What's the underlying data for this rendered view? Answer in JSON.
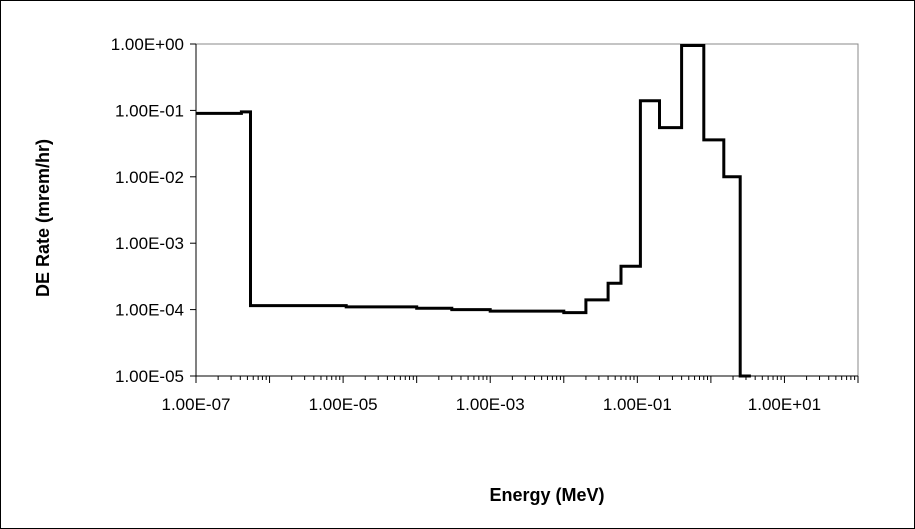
{
  "chart_data": {
    "type": "line",
    "step": true,
    "title": "",
    "xlabel": "Energy (MeV)",
    "ylabel": "DE Rate (mrem/hr)",
    "x_scale": "log",
    "y_scale": "log",
    "xlim": [
      1e-07,
      100
    ],
    "ylim": [
      1e-05,
      1
    ],
    "x_tick_labels": [
      "1.00E-07",
      "1.00E-05",
      "1.00E-03",
      "1.00E-01",
      "1.00E+01"
    ],
    "y_tick_labels": [
      "1.00E+00",
      "1.00E-01",
      "1.00E-02",
      "1.00E-03",
      "1.00E-04",
      "1.00E-05"
    ],
    "grid": false,
    "legend": "none",
    "bin_edges": [
      1e-07,
      4.14e-07,
      5.5e-07,
      1.1e-05,
      0.0001,
      0.0003,
      0.001,
      0.01,
      0.02,
      0.04,
      0.06,
      0.11,
      0.2,
      0.4,
      0.8,
      1.5,
      2.5,
      3.5
    ],
    "values": [
      0.09,
      0.095,
      0.000115,
      0.00011,
      0.000105,
      0.0001,
      9.5e-05,
      9e-05,
      0.00014,
      0.00025,
      0.00045,
      0.14,
      0.055,
      0.95,
      0.036,
      0.01,
      1e-05
    ],
    "line_color": "#000000"
  }
}
